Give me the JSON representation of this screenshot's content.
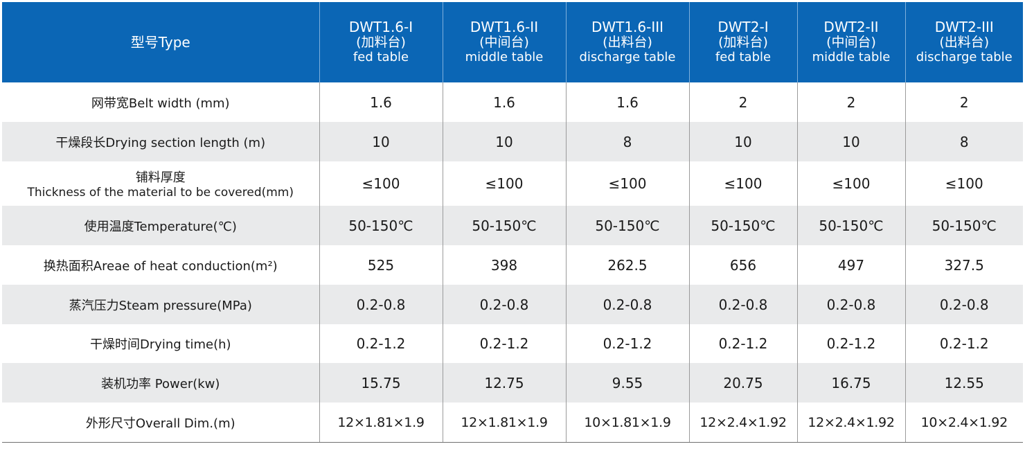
{
  "header": {
    "label": "型号Type",
    "models": [
      {
        "code": "DWT1.6-I",
        "cn": "(加料台)",
        "en": "fed table"
      },
      {
        "code": "DWT1.6-II",
        "cn": "(中间台)",
        "en": "middle table"
      },
      {
        "code": "DWT1.6-III",
        "cn": "(出料台)",
        "en": "discharge table"
      },
      {
        "code": "DWT2-I",
        "cn": "(加料台)",
        "en": "fed table"
      },
      {
        "code": "DWT2-II",
        "cn": "(中间台)",
        "en": "middle table"
      },
      {
        "code": "DWT2-III",
        "cn": "(出料台)",
        "en": "discharge table"
      }
    ]
  },
  "rows": [
    {
      "label": "网带宽Belt width (mm)",
      "values": [
        "1.6",
        "1.6",
        "1.6",
        "2",
        "2",
        "2"
      ]
    },
    {
      "label": "干燥段长Drying section length (m)",
      "values": [
        "10",
        "10",
        "8",
        "10",
        "10",
        "8"
      ]
    },
    {
      "label": "铺料厚度",
      "sublabel": "Thickness of the material to be covered(mm)",
      "values": [
        "≤100",
        "≤100",
        "≤100",
        "≤100",
        "≤100",
        "≤100"
      ]
    },
    {
      "label": "使用温度Temperature(℃)",
      "values": [
        "50-150℃",
        "50-150℃",
        "50-150℃",
        "50-150℃",
        "50-150℃",
        "50-150℃"
      ]
    },
    {
      "label": "换热面积Areae of heat conduction(m²)",
      "values": [
        "525",
        "398",
        "262.5",
        "656",
        "497",
        "327.5"
      ]
    },
    {
      "label": "蒸汽压力Steam pressure(MPa)",
      "values": [
        "0.2-0.8",
        "0.2-0.8",
        "0.2-0.8",
        "0.2-0.8",
        "0.2-0.8",
        "0.2-0.8"
      ]
    },
    {
      "label": "干燥时间Drying time(h)",
      "values": [
        "0.2-1.2",
        "0.2-1.2",
        "0.2-1.2",
        "0.2-1.2",
        "0.2-1.2",
        "0.2-1.2"
      ]
    },
    {
      "label": "装机功率 Power(kw)",
      "values": [
        "15.75",
        "12.75",
        "9.55",
        "20.75",
        "16.75",
        "12.55"
      ]
    },
    {
      "label": "外形尺寸Overall Dim.(m)",
      "values": [
        "12×1.81×1.9",
        "12×1.81×1.9",
        "10×1.81×1.9",
        "12×2.4×1.92",
        "12×2.4×1.92",
        "10×2.4×1.92"
      ]
    }
  ],
  "colors": {
    "header_bg": "#0b66b5",
    "stripe": "#e9eaeb"
  }
}
